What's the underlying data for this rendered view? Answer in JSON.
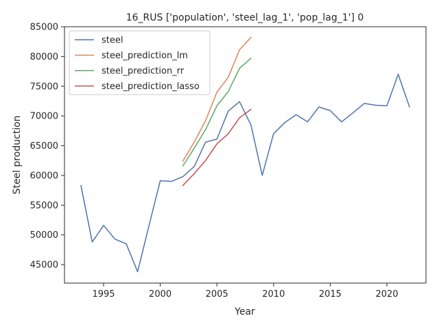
{
  "chart_data": {
    "type": "line",
    "title": "16_RUS ['population', 'steel_lag_1', 'pop_lag_1'] 0",
    "xlabel": "Year",
    "ylabel": "Steel production",
    "xlim": [
      1991.55,
      2023.45
    ],
    "ylim": [
      41900,
      85000
    ],
    "xticks": [
      1995,
      2000,
      2005,
      2010,
      2015,
      2020
    ],
    "yticks": [
      45000,
      50000,
      55000,
      60000,
      65000,
      70000,
      75000,
      80000,
      85000
    ],
    "grid": false,
    "legend_position": "upper-left",
    "series": [
      {
        "name": "steel",
        "color": "#4c72b0",
        "x": [
          1993,
          1994,
          1995,
          1996,
          1997,
          1998,
          1999,
          2000,
          2001,
          2002,
          2003,
          2004,
          2005,
          2006,
          2007,
          2008,
          2009,
          2010,
          2011,
          2012,
          2013,
          2014,
          2015,
          2016,
          2017,
          2018,
          2019,
          2020,
          2021,
          2022
        ],
        "y": [
          58300,
          48800,
          51600,
          49300,
          48500,
          43800,
          51500,
          59100,
          59000,
          59800,
          61500,
          65600,
          66100,
          70800,
          72400,
          68500,
          60000,
          67000,
          68900,
          70200,
          69000,
          71500,
          70900,
          69000,
          70500,
          72100,
          71800,
          71700,
          77000,
          71500
        ]
      },
      {
        "name": "steel_prediction_lm",
        "color": "#dd8452",
        "x": [
          2002,
          2003,
          2004,
          2005,
          2006,
          2007,
          2008
        ],
        "y": [
          62400,
          65600,
          69200,
          74000,
          76500,
          81100,
          83200
        ]
      },
      {
        "name": "steel_prediction_rr",
        "color": "#55a868",
        "x": [
          2002,
          2003,
          2004,
          2005,
          2006,
          2007,
          2008
        ],
        "y": [
          61600,
          64600,
          67700,
          71700,
          74100,
          78000,
          79700
        ]
      },
      {
        "name": "steel_prediction_lasso",
        "color": "#c44e52",
        "x": [
          2002,
          2003,
          2004,
          2005,
          2006,
          2007,
          2008
        ],
        "y": [
          58300,
          60300,
          62500,
          65300,
          67000,
          69700,
          71100
        ]
      }
    ]
  }
}
